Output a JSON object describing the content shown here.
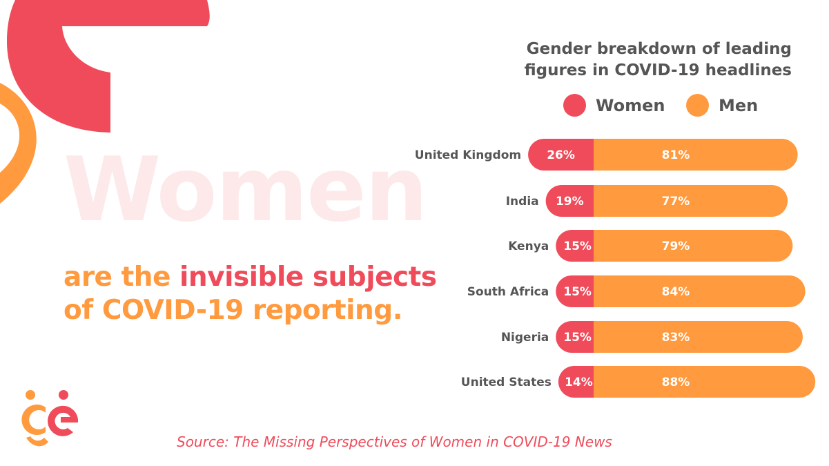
{
  "colors": {
    "women": "#ef4b5a",
    "men": "#ff9a3e",
    "text": "#555555",
    "watermark": "#fde9ea"
  },
  "headline": {
    "watermark_word": "Women",
    "line1_prefix": "are the ",
    "line1_highlight": "invisible subjects",
    "line2": "of COVID-19 reporting."
  },
  "source": "Source: The Missing Perspectives of Women in COVID-19 News",
  "logo": {
    "name": "ge-logo"
  },
  "chart_data": {
    "type": "bar",
    "orientation": "horizontal-stacked",
    "title": "Gender breakdown of leading figures in COVID-19 headlines",
    "title_lines": [
      "Gender breakdown of leading",
      "figures in COVID-19 headlines"
    ],
    "categories": [
      "United Kingdom",
      "India",
      "Kenya",
      "South Africa",
      "Nigeria",
      "United States"
    ],
    "series": [
      {
        "name": "Women",
        "values": [
          26,
          19,
          15,
          15,
          15,
          14
        ],
        "labels": [
          "26%",
          "19%",
          "15%",
          "15%",
          "15%",
          "14%"
        ],
        "color": "#ef4b5a"
      },
      {
        "name": "Men",
        "values": [
          81,
          77,
          79,
          84,
          83,
          88
        ],
        "labels": [
          "81%",
          "77%",
          "79%",
          "84%",
          "83%",
          "88%"
        ],
        "color": "#ff9a3e"
      }
    ],
    "legend_position": "top",
    "grid": false
  }
}
